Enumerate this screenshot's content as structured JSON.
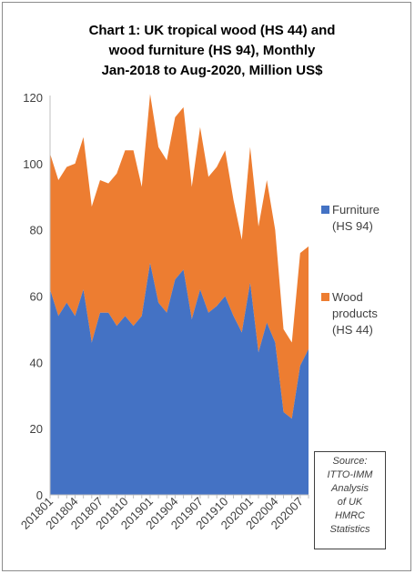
{
  "title_lines": [
    "Chart 1: UK tropical wood (HS 44) and",
    "wood furniture (HS 94), Monthly",
    "Jan-2018 to Aug-2020, Million US$"
  ],
  "legend": {
    "furniture": [
      "Furniture",
      "(HS 94)"
    ],
    "wood": [
      "Wood",
      "products",
      "(HS 44)"
    ]
  },
  "source_lines": [
    "Source:",
    "ITTO-IMM",
    "Analysis",
    "of UK",
    "HMRC",
    "Statistics"
  ],
  "colors": {
    "furniture": "#4472c4",
    "wood": "#ed7d31"
  },
  "chart_data": {
    "type": "area",
    "stacked": true,
    "x": [
      "201801",
      "201802",
      "201803",
      "201804",
      "201805",
      "201806",
      "201807",
      "201808",
      "201809",
      "201810",
      "201811",
      "201812",
      "201901",
      "201902",
      "201903",
      "201904",
      "201905",
      "201906",
      "201907",
      "201908",
      "201909",
      "201910",
      "201911",
      "201912",
      "202001",
      "202002",
      "202003",
      "202004",
      "202005",
      "202006",
      "202007",
      "202008"
    ],
    "x_tick_labels": [
      "201801",
      "201804",
      "201807",
      "201810",
      "201901",
      "201904",
      "201907",
      "201910",
      "202001",
      "202004",
      "202007"
    ],
    "y_ticks": [
      0,
      20,
      40,
      60,
      80,
      100,
      120
    ],
    "ylim": [
      0,
      120
    ],
    "grid": false,
    "legend_position": "right",
    "series": [
      {
        "name": "Furniture (HS 94)",
        "values": [
          62,
          54,
          58,
          54,
          62,
          46,
          55,
          55,
          51,
          54,
          51,
          54,
          70,
          58,
          55,
          65,
          68,
          53,
          62,
          55,
          57,
          60,
          54,
          49,
          64,
          43,
          52,
          46,
          25,
          23,
          39,
          44
        ]
      },
      {
        "name": "Wood products (HS 44)",
        "values": [
          41,
          41,
          41,
          46,
          46,
          41,
          40,
          39,
          46,
          50,
          53,
          39,
          51,
          47,
          46,
          49,
          49,
          40,
          49,
          41,
          42,
          44,
          35,
          28,
          41,
          38,
          43,
          34,
          25,
          23,
          34,
          31
        ]
      }
    ]
  }
}
